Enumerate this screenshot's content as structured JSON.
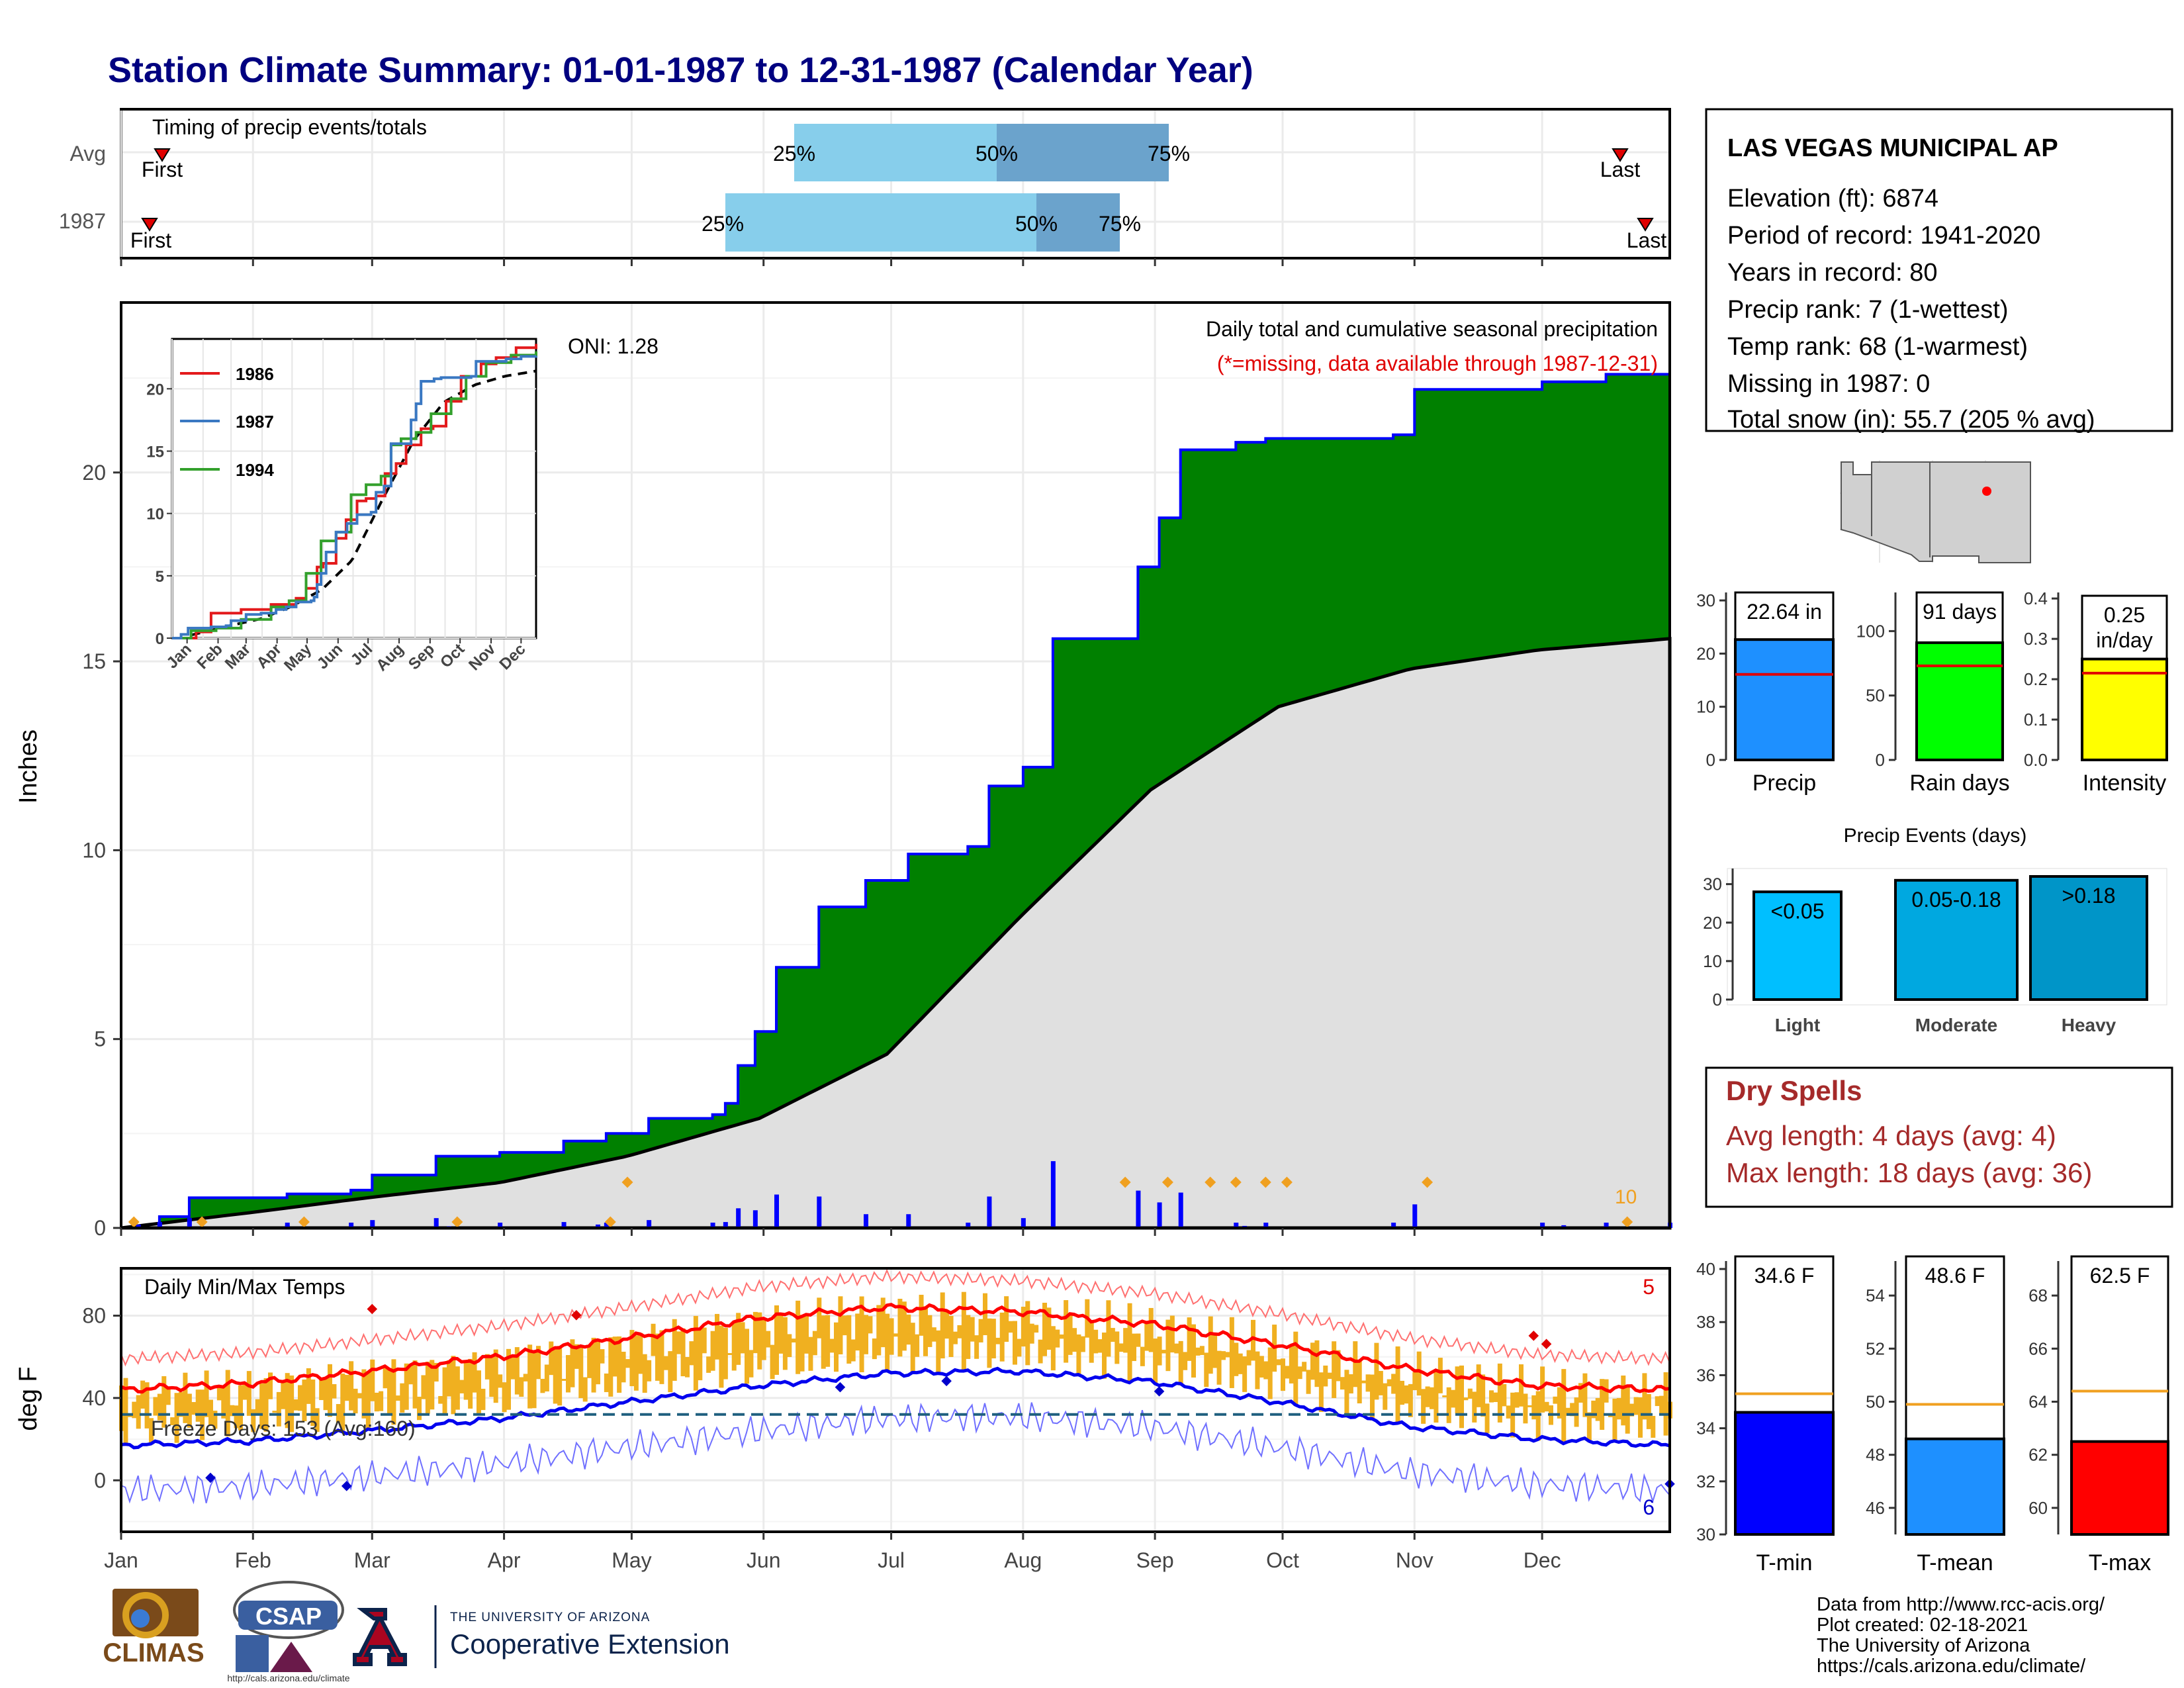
{
  "title": "Station Climate Summary: 01-01-1987 to 12-31-1987 (Calendar Year)",
  "colors": {
    "title": "#000080",
    "green": "#008000",
    "blue_line": "#0000ff",
    "normal_fill": "#e0e0e0",
    "light_blue": "#87ceeb",
    "mid_blue": "#6ba3cc",
    "orange": "#f0b020",
    "red": "#ff0000",
    "dry": "#a52a2a"
  },
  "station": {
    "name": "LAS VEGAS MUNICIPAL AP",
    "lines": [
      "Elevation (ft): 6874",
      "Period of record: 1941-2020",
      "Years in record: 80",
      "Precip rank: 7 (1-wettest)",
      "Temp rank: 68 (1-warmest)",
      "Missing in 1987: 0",
      "Total snow (in): 55.7 (205 % avg)"
    ]
  },
  "timing": {
    "label": "Timing of precip events/totals",
    "rows": [
      "Avg",
      "1987"
    ],
    "first_label": "First",
    "last_label": "Last",
    "pct_labels": [
      "25%",
      "50%",
      "75%"
    ]
  },
  "months": [
    "Jan",
    "Feb",
    "Mar",
    "Apr",
    "May",
    "Jun",
    "Jul",
    "Aug",
    "Sep",
    "Oct",
    "Nov",
    "Dec"
  ],
  "precip_panel": {
    "ylabel": "Inches",
    "note1": "Daily total and cumulative seasonal precipitation",
    "note2": "(*=missing, data available through 1987-12-31)",
    "oni": "ONI: 1.28",
    "corner_count": "10",
    "yticks": [
      "0",
      "5",
      "10",
      "15",
      "20"
    ]
  },
  "inset": {
    "legend": [
      "1986",
      "1987",
      "1994"
    ],
    "legend_colors": [
      "#e31a1c",
      "#3a78c2",
      "#33a02c"
    ],
    "yticks": [
      "0",
      "5",
      "10",
      "15",
      "20"
    ],
    "months": [
      "Jan",
      "Feb",
      "Mar",
      "Apr",
      "May",
      "Jun",
      "Jul",
      "Aug",
      "Sep",
      "Oct",
      "Nov",
      "Dec"
    ]
  },
  "temp_panel": {
    "ylabel": "deg F",
    "label": "Daily Min/Max Temps",
    "freeze": "Freeze Days: 153 (Avg:160)",
    "count_high": "5",
    "count_low": "6",
    "yticks": [
      "0",
      "40",
      "80"
    ]
  },
  "bars_top": {
    "precip": {
      "value_label": "22.64 in",
      "xlabel": "Precip",
      "yticks": [
        "0",
        "10",
        "20",
        "30"
      ]
    },
    "raindays": {
      "value_label": "91 days",
      "xlabel": "Rain days",
      "yticks": [
        "0",
        "50",
        "100"
      ]
    },
    "intensity": {
      "value_label_1": "0.25",
      "value_label_2": "in/day",
      "xlabel": "Intensity",
      "yticks": [
        "0.0",
        "0.1",
        "0.2",
        "0.3",
        "0.4"
      ]
    }
  },
  "events": {
    "title": "Precip Events (days)",
    "labels": [
      "<0.05",
      "0.05-0.18",
      ">0.18"
    ],
    "xlabels": [
      "Light",
      "Moderate",
      "Heavy"
    ],
    "yticks": [
      "0",
      "10",
      "20",
      "30"
    ]
  },
  "dry_spells": {
    "title": "Dry Spells",
    "avg": "Avg length: 4 days (avg: 4)",
    "max": "Max length: 18 days (avg: 36)"
  },
  "bars_temp": {
    "tmin": {
      "value_label": "34.6 F",
      "xlabel": "T-min",
      "yticks": [
        "30",
        "32",
        "34",
        "36",
        "38",
        "40"
      ]
    },
    "tmean": {
      "value_label": "48.6 F",
      "xlabel": "T-mean",
      "yticks": [
        "46",
        "48",
        "50",
        "52",
        "54"
      ]
    },
    "tmax": {
      "value_label": "62.5 F",
      "xlabel": "T-max",
      "yticks": [
        "60",
        "62",
        "64",
        "66",
        "68"
      ]
    }
  },
  "footer": {
    "lines": [
      "Data from http://www.rcc-acis.org/",
      "Plot created: 02-18-2021",
      "The University of Arizona",
      "https://cals.arizona.edu/climate/"
    ],
    "ua_small": "THE UNIVERSITY OF ARIZONA",
    "ua_big": "Cooperative Extension",
    "climas": "CLIMAS",
    "csap": "CSAP",
    "csap_url": "http://cals.arizona.edu/climate"
  },
  "chart_data": [
    {
      "type": "area",
      "title": "Daily total and cumulative seasonal precipitation",
      "ylabel": "Inches",
      "ylim": [
        0,
        24.5
      ],
      "series": [
        {
          "name": "1987",
          "x_day": [
            1,
            10,
            17,
            25,
            40,
            55,
            60,
            75,
            90,
            105,
            115,
            125,
            135,
            140,
            143,
            146,
            150,
            155,
            158,
            162,
            165,
            172,
            176,
            186,
            195,
            200,
            205,
            213,
            220,
            225,
            232,
            240,
            245,
            247,
            250,
            257,
            263,
            270,
            285,
            300,
            305,
            320,
            335,
            350,
            360,
            365
          ],
          "values": [
            0,
            0.3,
            0.8,
            0.8,
            0.9,
            1.0,
            1.4,
            1.9,
            2.0,
            2.3,
            2.5,
            2.9,
            2.9,
            3.0,
            3.3,
            4.3,
            5.2,
            6.9,
            6.9,
            6.9,
            8.5,
            8.5,
            9.2,
            9.9,
            9.9,
            10.1,
            11.7,
            12.2,
            15.6,
            15.6,
            15.6,
            17.5,
            18.8,
            18.8,
            20.6,
            20.6,
            20.8,
            20.9,
            20.9,
            21.0,
            22.2,
            22.2,
            22.4,
            22.6,
            22.6,
            22.64
          ]
        },
        {
          "name": "Normal",
          "x_day": [
            1,
            31,
            59,
            90,
            120,
            151,
            181,
            212,
            243,
            273,
            304,
            334,
            365
          ],
          "values": [
            0,
            0.4,
            0.8,
            1.2,
            1.9,
            2.9,
            4.6,
            8.2,
            11.6,
            13.8,
            14.8,
            15.3,
            15.6
          ]
        }
      ]
    },
    {
      "type": "line",
      "title": "Daily Min/Max Temps",
      "ylabel": "deg F",
      "ylim": [
        -25,
        103
      ],
      "series": [
        {
          "name": "Normal max",
          "x_day": [
            1,
            31,
            59,
            90,
            120,
            151,
            181,
            212,
            243,
            273,
            304,
            334,
            365
          ],
          "values": [
            44,
            47,
            53,
            60,
            69,
            79,
            84,
            82,
            76,
            66,
            54,
            46,
            44
          ]
        },
        {
          "name": "Normal min",
          "x_day": [
            1,
            31,
            59,
            90,
            120,
            151,
            181,
            212,
            243,
            273,
            304,
            334,
            365
          ],
          "values": [
            17,
            19,
            24,
            30,
            38,
            46,
            52,
            53,
            48,
            38,
            26,
            20,
            17
          ]
        }
      ]
    },
    {
      "type": "bar",
      "categories": [
        "Precip"
      ],
      "values": [
        22.64
      ],
      "ylim": [
        0,
        30
      ]
    },
    {
      "type": "bar",
      "categories": [
        "Rain days"
      ],
      "values": [
        91
      ],
      "ylim": [
        0,
        130
      ]
    },
    {
      "type": "bar",
      "categories": [
        "Intensity"
      ],
      "values": [
        0.25
      ],
      "ylim": [
        0,
        0.4
      ]
    },
    {
      "type": "bar",
      "title": "Precip Events (days)",
      "categories": [
        "Light",
        "Moderate",
        "Heavy"
      ],
      "values": [
        28,
        31,
        32
      ],
      "ylim": [
        0,
        32
      ]
    },
    {
      "type": "bar",
      "categories": [
        "T-min"
      ],
      "values": [
        34.6
      ],
      "ylim": [
        30,
        40
      ]
    },
    {
      "type": "bar",
      "categories": [
        "T-mean"
      ],
      "values": [
        48.6
      ],
      "ylim": [
        45,
        55
      ]
    },
    {
      "type": "bar",
      "categories": [
        "T-max"
      ],
      "values": [
        62.5
      ],
      "ylim": [
        59,
        69
      ]
    }
  ]
}
